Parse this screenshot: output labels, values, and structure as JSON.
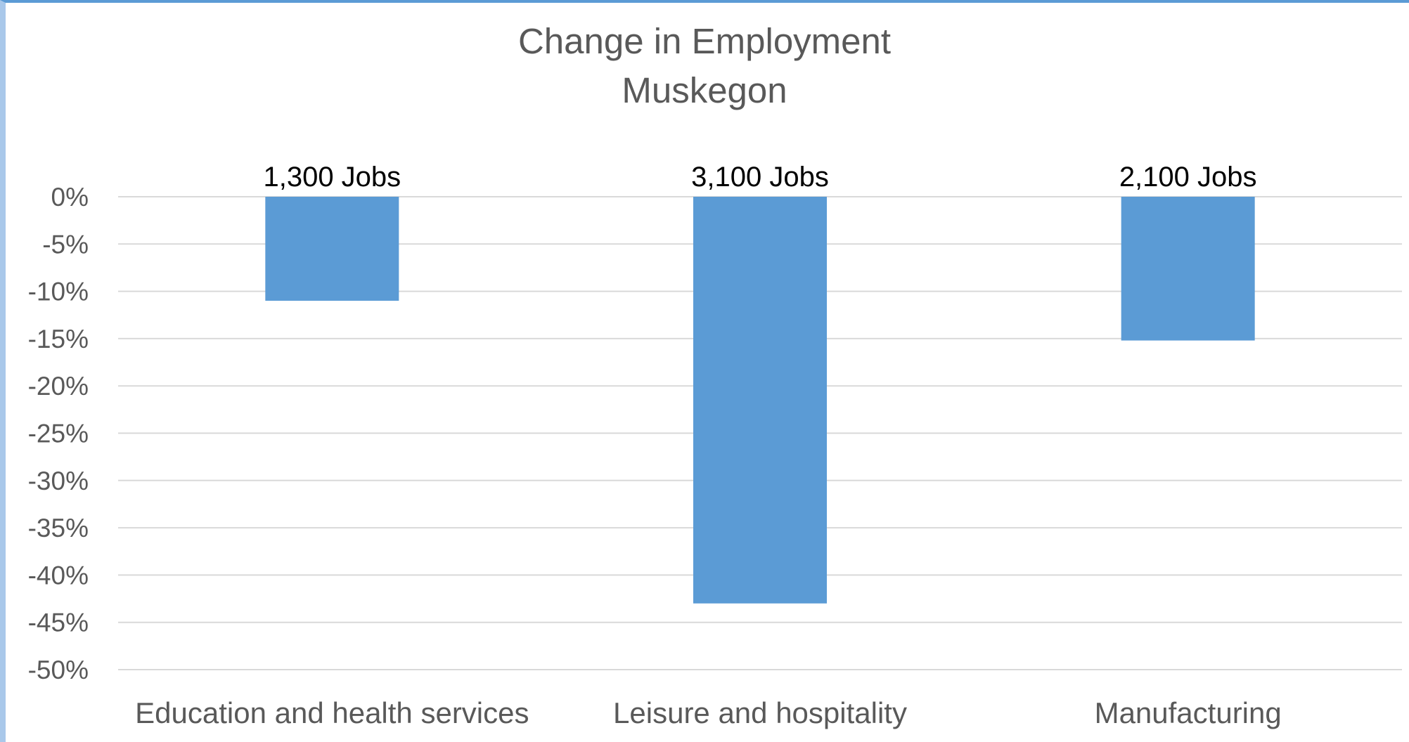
{
  "chart_data": {
    "type": "bar",
    "title": "Change in Employment",
    "subtitle": "Muskegon",
    "categories": [
      "Education and health services",
      "Leisure and hospitality",
      "Manufacturing"
    ],
    "values": [
      -11,
      -43,
      -15.2
    ],
    "data_labels": [
      "1,300 Jobs",
      "3,100 Jobs",
      "2,100 Jobs"
    ],
    "ylim": [
      -50,
      0
    ],
    "yticks": [
      0,
      -5,
      -10,
      -15,
      -20,
      -25,
      -30,
      -35,
      -40,
      -45,
      -50
    ],
    "ytick_labels": [
      "0%",
      "-5%",
      "-10%",
      "-15%",
      "-20%",
      "-25%",
      "-30%",
      "-35%",
      "-40%",
      "-45%",
      "-50%"
    ],
    "grid": true,
    "legend": "none",
    "bar_color": "#5b9bd5"
  }
}
